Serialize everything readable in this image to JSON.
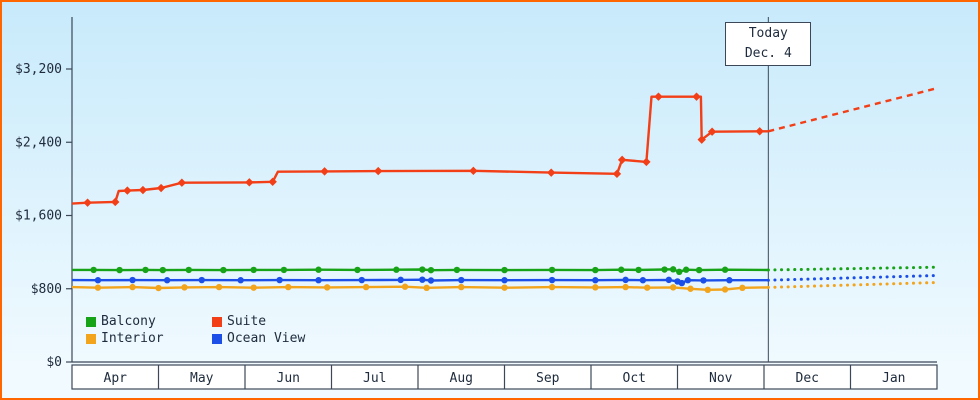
{
  "chart_data": {
    "type": "line",
    "title": "",
    "ylim": [
      0,
      3200
    ],
    "points_format": "[month_x, price_usd, has_marker]",
    "y_axis": {
      "ticks": [
        {
          "value": 0,
          "label": "$0"
        },
        {
          "value": 800,
          "label": "$800"
        },
        {
          "value": 1600,
          "label": "$1,600"
        },
        {
          "value": 2400,
          "label": "$2,400"
        },
        {
          "value": 3200,
          "label": "$3,200"
        }
      ]
    },
    "x_axis": {
      "months": [
        "Apr",
        "May",
        "Jun",
        "Jul",
        "Aug",
        "Sep",
        "Oct",
        "Nov",
        "Dec",
        "Jan"
      ]
    },
    "today": {
      "line1": "Today",
      "line2": "Dec. 4",
      "month_x": 8.05
    },
    "colors": {
      "frame_border": "#ff6600",
      "background_top": "#c8eafb",
      "background_bottom": "#f0faff",
      "axis": "#3c4858",
      "text": "#1e2b3c",
      "month_cell_fill": "#ffffff"
    },
    "legend": [
      {
        "label": "Balcony",
        "color": "#17a317"
      },
      {
        "label": "Suite",
        "color": "#f23f18"
      },
      {
        "label": "Interior",
        "color": "#f2a41d"
      },
      {
        "label": "Ocean View",
        "color": "#1b4fe8"
      }
    ],
    "series": [
      {
        "name": "Suite",
        "color": "#f23f18",
        "marker": "diamond",
        "points": [
          [
            0.0,
            1730,
            0
          ],
          [
            0.18,
            1740,
            1
          ],
          [
            0.5,
            1748,
            1
          ],
          [
            0.54,
            1868,
            0
          ],
          [
            0.64,
            1872,
            1
          ],
          [
            0.82,
            1878,
            1
          ],
          [
            1.03,
            1900,
            1
          ],
          [
            1.27,
            1958,
            1
          ],
          [
            2.05,
            1962,
            1
          ],
          [
            2.32,
            1968,
            1
          ],
          [
            2.38,
            2078,
            0
          ],
          [
            2.92,
            2082,
            1
          ],
          [
            3.54,
            2085,
            1
          ],
          [
            4.64,
            2088,
            1
          ],
          [
            5.54,
            2068,
            1
          ],
          [
            6.3,
            2055,
            1
          ],
          [
            6.36,
            2208,
            1
          ],
          [
            6.64,
            2185,
            1
          ],
          [
            6.7,
            2898,
            0
          ],
          [
            6.78,
            2898,
            1
          ],
          [
            7.22,
            2898,
            1
          ],
          [
            7.27,
            2898,
            0
          ],
          [
            7.28,
            2428,
            1
          ],
          [
            7.4,
            2515,
            1
          ],
          [
            7.95,
            2520,
            1
          ],
          [
            8.05,
            2520,
            0
          ]
        ],
        "forecast": [
          [
            8.05,
            2520
          ],
          [
            10.0,
            2990
          ]
        ]
      },
      {
        "name": "Balcony",
        "color": "#17a317",
        "marker": "circle",
        "points": [
          [
            0.0,
            1006,
            0
          ],
          [
            0.25,
            1006,
            1
          ],
          [
            0.55,
            1004,
            1
          ],
          [
            0.85,
            1006,
            1
          ],
          [
            1.05,
            1004,
            1
          ],
          [
            1.35,
            1006,
            1
          ],
          [
            1.75,
            1004,
            1
          ],
          [
            2.1,
            1006,
            1
          ],
          [
            2.45,
            1006,
            1
          ],
          [
            2.85,
            1008,
            1
          ],
          [
            3.3,
            1006,
            1
          ],
          [
            3.75,
            1008,
            1
          ],
          [
            4.05,
            1010,
            1
          ],
          [
            4.15,
            1003,
            1
          ],
          [
            4.45,
            1006,
            1
          ],
          [
            5.0,
            1004,
            1
          ],
          [
            5.55,
            1006,
            1
          ],
          [
            6.05,
            1004,
            1
          ],
          [
            6.35,
            1008,
            1
          ],
          [
            6.55,
            1006,
            1
          ],
          [
            6.85,
            1010,
            1
          ],
          [
            6.95,
            1012,
            1
          ],
          [
            7.02,
            985,
            1
          ],
          [
            7.1,
            1008,
            1
          ],
          [
            7.25,
            1004,
            1
          ],
          [
            7.55,
            1008,
            1
          ],
          [
            8.05,
            1005,
            0
          ]
        ],
        "forecast": [
          [
            8.05,
            1005
          ],
          [
            10.0,
            1035
          ]
        ]
      },
      {
        "name": "Ocean View",
        "color": "#1b4fe8",
        "marker": "circle",
        "points": [
          [
            0.0,
            895,
            0
          ],
          [
            0.3,
            893,
            1
          ],
          [
            0.7,
            895,
            1
          ],
          [
            1.1,
            893,
            1
          ],
          [
            1.5,
            895,
            1
          ],
          [
            1.95,
            893,
            1
          ],
          [
            2.4,
            895,
            1
          ],
          [
            2.85,
            893,
            1
          ],
          [
            3.35,
            895,
            1
          ],
          [
            3.8,
            897,
            1
          ],
          [
            4.05,
            899,
            1
          ],
          [
            4.15,
            890,
            1
          ],
          [
            4.5,
            895,
            1
          ],
          [
            5.0,
            893,
            1
          ],
          [
            5.55,
            895,
            1
          ],
          [
            6.05,
            893,
            1
          ],
          [
            6.4,
            897,
            1
          ],
          [
            6.6,
            893,
            1
          ],
          [
            6.9,
            897,
            1
          ],
          [
            7.0,
            880,
            1
          ],
          [
            7.05,
            862,
            1
          ],
          [
            7.12,
            893,
            1
          ],
          [
            7.3,
            891,
            1
          ],
          [
            7.6,
            893,
            1
          ],
          [
            8.05,
            893,
            0
          ]
        ],
        "forecast": [
          [
            8.05,
            893
          ],
          [
            10.0,
            945
          ]
        ]
      },
      {
        "name": "Interior",
        "color": "#f2a41d",
        "marker": "circle",
        "points": [
          [
            0.0,
            818,
            0
          ],
          [
            0.3,
            812,
            1
          ],
          [
            0.7,
            818,
            1
          ],
          [
            1.0,
            808,
            1
          ],
          [
            1.3,
            815,
            1
          ],
          [
            1.7,
            818,
            1
          ],
          [
            2.1,
            812,
            1
          ],
          [
            2.5,
            818,
            1
          ],
          [
            2.95,
            815,
            1
          ],
          [
            3.4,
            818,
            1
          ],
          [
            3.85,
            822,
            1
          ],
          [
            4.1,
            810,
            1
          ],
          [
            4.5,
            818,
            1
          ],
          [
            5.0,
            812,
            1
          ],
          [
            5.55,
            818,
            1
          ],
          [
            6.05,
            815,
            1
          ],
          [
            6.4,
            818,
            1
          ],
          [
            6.65,
            812,
            1
          ],
          [
            6.95,
            815,
            1
          ],
          [
            7.15,
            800,
            1
          ],
          [
            7.35,
            788,
            1
          ],
          [
            7.55,
            792,
            1
          ],
          [
            7.75,
            810,
            1
          ],
          [
            8.05,
            815,
            0
          ]
        ],
        "forecast": [
          [
            8.05,
            815
          ],
          [
            10.0,
            868
          ]
        ]
      }
    ]
  }
}
